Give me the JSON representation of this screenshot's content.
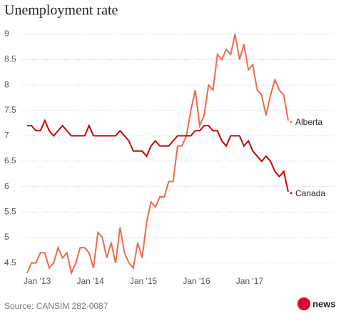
{
  "chart_data": {
    "type": "line",
    "title": "Unemployment rate",
    "source": "Source: CANSIM 282-0087",
    "logo": "news",
    "categories": [
      "Jan '13",
      null,
      null,
      null,
      null,
      null,
      null,
      null,
      null,
      null,
      null,
      null,
      "Jan '14",
      null,
      null,
      null,
      null,
      null,
      null,
      null,
      null,
      null,
      null,
      null,
      "Jan '15",
      null,
      null,
      null,
      null,
      null,
      null,
      null,
      null,
      null,
      null,
      null,
      "Jan '16",
      null,
      null,
      null,
      null,
      null,
      null,
      null,
      null,
      null,
      null,
      null,
      "Jan '17",
      null,
      null,
      null,
      null,
      null,
      null,
      null,
      null,
      null,
      null,
      null
    ],
    "series": [
      {
        "name": "Alberta",
        "color": "#f0694a",
        "values": [
          4.3,
          4.5,
          4.5,
          4.7,
          4.7,
          4.4,
          4.5,
          4.8,
          4.6,
          4.7,
          4.3,
          4.5,
          4.8,
          4.8,
          4.7,
          4.4,
          5.1,
          5.0,
          4.6,
          4.9,
          4.5,
          5.2,
          4.7,
          4.5,
          4.4,
          4.9,
          4.6,
          5.3,
          5.7,
          5.6,
          5.8,
          5.8,
          6.1,
          6.1,
          6.8,
          6.8,
          7.0,
          7.5,
          7.9,
          7.2,
          7.4,
          8.0,
          7.9,
          8.6,
          8.5,
          8.7,
          8.6,
          9.0,
          8.5,
          8.8,
          8.3,
          8.4,
          7.9,
          7.8,
          7.4,
          7.8,
          8.1,
          7.9,
          7.8,
          7.3
        ]
      },
      {
        "name": "Canada",
        "color": "#cc0000",
        "values": [
          7.2,
          7.2,
          7.1,
          7.1,
          7.3,
          7.1,
          7.0,
          7.1,
          7.2,
          7.1,
          7.0,
          7.0,
          7.0,
          7.0,
          7.2,
          7.0,
          7.0,
          7.0,
          7.0,
          7.0,
          7.0,
          7.1,
          7.0,
          6.9,
          6.7,
          6.7,
          6.7,
          6.6,
          6.8,
          6.9,
          6.8,
          6.8,
          6.8,
          6.9,
          7.0,
          7.0,
          7.0,
          7.0,
          7.1,
          7.1,
          7.2,
          7.2,
          7.1,
          7.1,
          6.9,
          6.8,
          7.0,
          7.0,
          7.0,
          6.8,
          6.9,
          6.7,
          6.6,
          6.5,
          6.6,
          6.5,
          6.3,
          6.2,
          6.3,
          5.9
        ]
      }
    ],
    "ylim": [
      4.2,
      9.25
    ],
    "yticks": [
      4.5,
      5,
      5.5,
      6,
      6.5,
      7,
      7.5,
      8,
      8.5,
      9
    ],
    "grid": true
  }
}
